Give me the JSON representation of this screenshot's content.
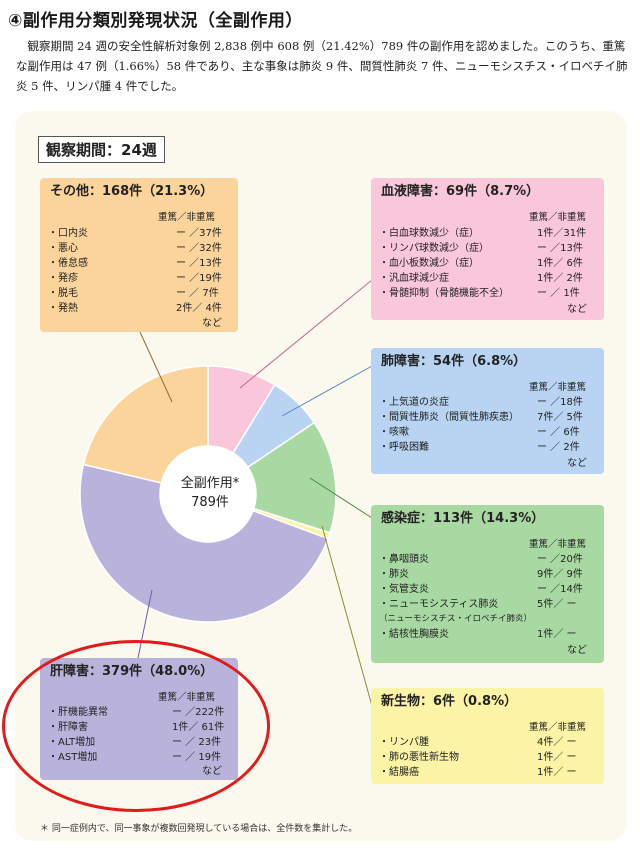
{
  "heading": "④副作用分類別発現状況（全副作用）",
  "intro": "観察期間 24 週の安全性解析対象例 2,838 例中 608 例（21.42%）789 件の副作用を認めました。このうち、重篤な副作用は 47 例（1.66%）58 件であり、主な事象は肺炎 9 件、間質性肺炎 7 件、ニューモシスチス・イロベチイ肺炎 5 件、リンパ腫 4 件でした。",
  "period_label": "観察期間：24週",
  "center_label": {
    "line1": "全副作用*",
    "line2": "789件"
  },
  "col_header": "重篤／非重篤",
  "etc": "など",
  "footnote": "＊ 同一症例内で、同一事象が複数回発現している場合は、全件数を集計した。",
  "colors": {
    "liver": "#b9b3db",
    "other": "#fbd49b",
    "blood": "#f9c6da",
    "lung": "#b8d4f2",
    "infection": "#a9d9a3",
    "neoplasm": "#fbf3a5",
    "highlight_ring": "#e01b1b"
  },
  "chart_data": {
    "type": "pie",
    "style": "donut",
    "total": 789,
    "slices": [
      {
        "key": "blood",
        "label": "血液障害：69件（8.7%）",
        "value": 69,
        "percent": 8.7
      },
      {
        "key": "lung",
        "label": "肺障害：54件（6.8%）",
        "value": 54,
        "percent": 6.8
      },
      {
        "key": "infection",
        "label": "感染症：113件（14.3%）",
        "value": 113,
        "percent": 14.3
      },
      {
        "key": "neoplasm",
        "label": "新生物：6件（0.8%）",
        "value": 6,
        "percent": 0.8
      },
      {
        "key": "liver",
        "label": "肝障害：379件（48.0%）",
        "value": 379,
        "percent": 48.0
      },
      {
        "key": "other",
        "label": "その他：168件（21.3%）",
        "value": 168,
        "percent": 21.3
      }
    ]
  },
  "groups": {
    "other": {
      "title": "その他：168件（21.3%）",
      "items": [
        {
          "name": "・口内炎",
          "value": "ー ／37件"
        },
        {
          "name": "・悪心",
          "value": "ー ／32件"
        },
        {
          "name": "・倦怠感",
          "value": "ー ／13件"
        },
        {
          "name": "・発疹",
          "value": "ー ／19件"
        },
        {
          "name": "・脱毛",
          "value": "ー ／ 7件"
        },
        {
          "name": "・発熱",
          "value": "2件／ 4件"
        }
      ]
    },
    "blood": {
      "title": "血液障害：69件（8.7%）",
      "items": [
        {
          "name": "・白血球数減少（症）",
          "value": "1件／31件"
        },
        {
          "name": "・リンパ球数減少（症）",
          "value": "ー ／13件"
        },
        {
          "name": "・血小板数減少（症）",
          "value": "1件／ 6件"
        },
        {
          "name": "・汎血球減少症",
          "value": "1件／ 2件"
        },
        {
          "name": "・骨髄抑制（骨髄機能不全）",
          "value": "ー ／ 1件"
        }
      ]
    },
    "lung": {
      "title": "肺障害：54件（6.8%）",
      "items": [
        {
          "name": "・上気道の炎症",
          "value": "ー ／18件"
        },
        {
          "name": "・間質性肺炎（間質性肺疾患）",
          "value": "7件／ 5件"
        },
        {
          "name": "・咳嗽",
          "value": "ー ／ 6件"
        },
        {
          "name": "・呼吸困難",
          "value": "ー ／ 2件"
        }
      ]
    },
    "infection": {
      "title": "感染症：113件（14.3%）",
      "items": [
        {
          "name": "・鼻咽頭炎",
          "value": "ー ／20件"
        },
        {
          "name": "・肺炎",
          "value": "9件／ 9件"
        },
        {
          "name": "・気管支炎",
          "value": "ー ／14件"
        },
        {
          "name": "・ニューモシスティス肺炎",
          "value": "5件／ ー"
        },
        {
          "name": "（ニューモシスチス・イロベチイ肺炎）",
          "value": ""
        },
        {
          "name": "・結核性胸膜炎",
          "value": "1件／ ー"
        }
      ]
    },
    "neoplasm": {
      "title": "新生物：6件（0.8%）",
      "items": [
        {
          "name": "・リンパ腫",
          "value": "4件／ ー"
        },
        {
          "name": "・肺の悪性新生物",
          "value": "1件／ ー"
        },
        {
          "name": "・結腸癌",
          "value": "1件／ ー"
        }
      ]
    },
    "liver": {
      "title": "肝障害：379件（48.0%）",
      "items": [
        {
          "name": "・肝機能異常",
          "value": "ー ／222件"
        },
        {
          "name": "・肝障害",
          "value": "1件／ 61件"
        },
        {
          "name": "・ALT増加",
          "value": "ー ／ 23件"
        },
        {
          "name": "・AST増加",
          "value": "ー ／ 19件"
        }
      ]
    }
  }
}
